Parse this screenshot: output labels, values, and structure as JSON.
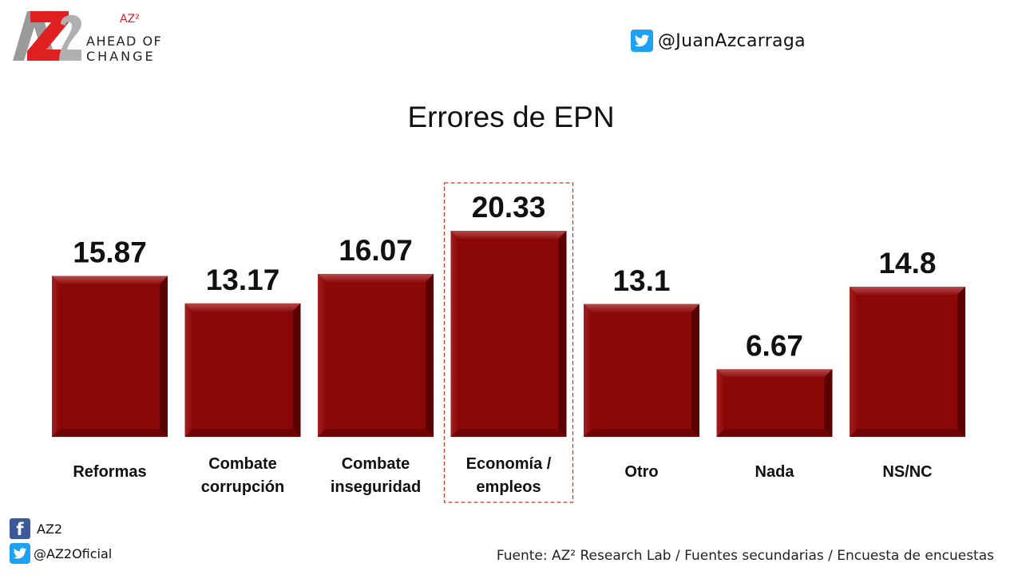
{
  "logo": {
    "superscript": "AZ²",
    "line1": "AHEAD OF",
    "line2": "CHANGE"
  },
  "header": {
    "twitter_handle": "@JuanAzcarraga"
  },
  "footer": {
    "facebook_label": "AZ2",
    "twitter_label": "@AZ2Oficial",
    "source": "Fuente: AZ² Research Lab / Fuentes secundarias / Encuesta de encuestas"
  },
  "colors": {
    "bar": "#8b0808",
    "bar_light": "#a82a2a",
    "bar_dark": "#5a0202",
    "highlight_box": "#c0392b",
    "twitter": "#1da1f2",
    "facebook": "#3b5998"
  },
  "chart_data": {
    "type": "bar",
    "title": "Errores de EPN",
    "categories": [
      [
        "Reformas"
      ],
      [
        "Combate",
        "corrupción"
      ],
      [
        "Combate",
        "inseguridad"
      ],
      [
        "Economía /",
        "empleos"
      ],
      [
        "Otro"
      ],
      [
        "Nada"
      ],
      [
        "NS/NC"
      ]
    ],
    "values": [
      15.87,
      13.17,
      16.07,
      20.33,
      13.1,
      6.67,
      14.8
    ],
    "value_labels": [
      "15.87",
      "13.17",
      "16.07",
      "20.33",
      "13.1",
      "6.67",
      "14.8"
    ],
    "highlighted_index": 3,
    "ylim": [
      0,
      20.33
    ],
    "grid": false,
    "legend": "none"
  }
}
